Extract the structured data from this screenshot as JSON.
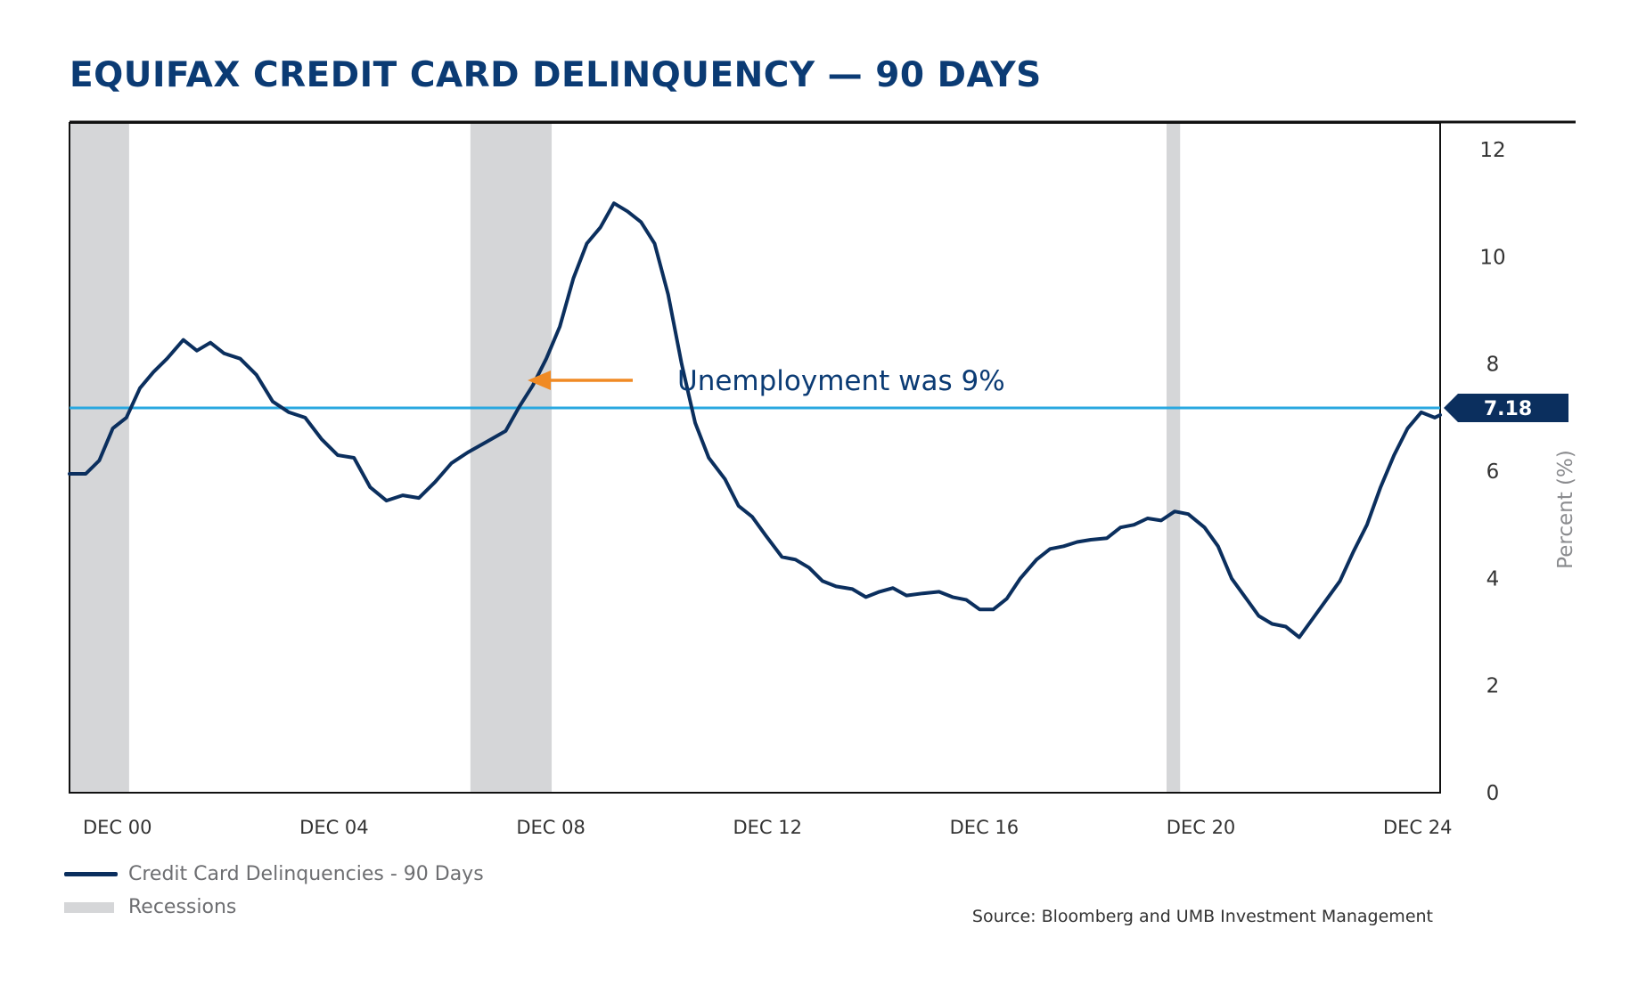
{
  "title": "EQUIFAX CREDIT CARD DELINQUENCY — 90 DAYS",
  "annotation": {
    "text": "Unemployment was 9%",
    "reference_value": 7.18,
    "reference_label": "7.18"
  },
  "legend": {
    "line_label": "Credit Card Delinquencies - 90 Days",
    "recession_label": "Recessions"
  },
  "source": "Source: Bloomberg and UMB Investment Management",
  "colors": {
    "title": "#0b3b74",
    "series": "#0b2f5e",
    "reference_line": "#29a8e0",
    "arrow": "#f08a24",
    "recession": "#d5d6d8",
    "axis_text": "#333333"
  },
  "chart_data": {
    "type": "line",
    "title": "EQUIFAX CREDIT CARD DELINQUENCY — 90 DAYS",
    "xlabel": "",
    "ylabel": "Percent (%)",
    "ylim": [
      0,
      12.5
    ],
    "yticks": [
      0,
      2,
      4,
      6,
      8,
      10,
      12
    ],
    "xlim": [
      2000.0,
      2025.3
    ],
    "xticks": [
      {
        "x": 2000.917,
        "label": "DEC 00"
      },
      {
        "x": 2004.917,
        "label": "DEC 04"
      },
      {
        "x": 2008.917,
        "label": "DEC 08"
      },
      {
        "x": 2012.917,
        "label": "DEC 12"
      },
      {
        "x": 2016.917,
        "label": "DEC 16"
      },
      {
        "x": 2020.917,
        "label": "DEC 20"
      },
      {
        "x": 2024.917,
        "label": "DEC 24"
      }
    ],
    "y_axis_side": "right",
    "grid": false,
    "legend_position": "bottom-left",
    "recessions": [
      {
        "start": 2000.0,
        "end": 2001.1
      },
      {
        "start": 2007.4,
        "end": 2008.9
      },
      {
        "start": 2020.25,
        "end": 2020.5
      }
    ],
    "series": [
      {
        "name": "Credit Card Delinquencies - 90 Days",
        "points": [
          [
            2000.0,
            5.95
          ],
          [
            2000.3,
            5.95
          ],
          [
            2000.55,
            6.2
          ],
          [
            2000.8,
            6.8
          ],
          [
            2001.05,
            7.0
          ],
          [
            2001.3,
            7.55
          ],
          [
            2001.55,
            7.85
          ],
          [
            2001.8,
            8.1
          ],
          [
            2002.1,
            8.45
          ],
          [
            2002.35,
            8.25
          ],
          [
            2002.6,
            8.4
          ],
          [
            2002.85,
            8.2
          ],
          [
            2003.15,
            8.1
          ],
          [
            2003.45,
            7.8
          ],
          [
            2003.75,
            7.3
          ],
          [
            2004.05,
            7.1
          ],
          [
            2004.35,
            7.0
          ],
          [
            2004.65,
            6.6
          ],
          [
            2004.95,
            6.3
          ],
          [
            2005.25,
            6.25
          ],
          [
            2005.55,
            5.7
          ],
          [
            2005.85,
            5.45
          ],
          [
            2006.15,
            5.55
          ],
          [
            2006.45,
            5.5
          ],
          [
            2006.75,
            5.8
          ],
          [
            2007.05,
            6.15
          ],
          [
            2007.35,
            6.35
          ],
          [
            2007.7,
            6.55
          ],
          [
            2008.05,
            6.75
          ],
          [
            2008.3,
            7.2
          ],
          [
            2008.55,
            7.6
          ],
          [
            2008.8,
            8.1
          ],
          [
            2009.05,
            8.7
          ],
          [
            2009.3,
            9.6
          ],
          [
            2009.55,
            10.25
          ],
          [
            2009.8,
            10.55
          ],
          [
            2010.05,
            11.0
          ],
          [
            2010.3,
            10.85
          ],
          [
            2010.55,
            10.65
          ],
          [
            2010.8,
            10.25
          ],
          [
            2011.05,
            9.3
          ],
          [
            2011.3,
            8.0
          ],
          [
            2011.55,
            6.9
          ],
          [
            2011.8,
            6.25
          ],
          [
            2012.1,
            5.85
          ],
          [
            2012.35,
            5.35
          ],
          [
            2012.6,
            5.15
          ],
          [
            2012.85,
            4.8
          ],
          [
            2013.15,
            4.4
          ],
          [
            2013.4,
            4.35
          ],
          [
            2013.65,
            4.2
          ],
          [
            2013.9,
            3.95
          ],
          [
            2014.15,
            3.85
          ],
          [
            2014.45,
            3.8
          ],
          [
            2014.7,
            3.65
          ],
          [
            2014.95,
            3.75
          ],
          [
            2015.2,
            3.82
          ],
          [
            2015.45,
            3.68
          ],
          [
            2015.75,
            3.72
          ],
          [
            2016.05,
            3.75
          ],
          [
            2016.3,
            3.65
          ],
          [
            2016.55,
            3.6
          ],
          [
            2016.8,
            3.42
          ],
          [
            2017.05,
            3.42
          ],
          [
            2017.3,
            3.62
          ],
          [
            2017.55,
            4.0
          ],
          [
            2017.85,
            4.35
          ],
          [
            2018.1,
            4.55
          ],
          [
            2018.35,
            4.6
          ],
          [
            2018.6,
            4.68
          ],
          [
            2018.85,
            4.72
          ],
          [
            2019.15,
            4.75
          ],
          [
            2019.4,
            4.95
          ],
          [
            2019.65,
            5.0
          ],
          [
            2019.9,
            5.12
          ],
          [
            2020.15,
            5.08
          ],
          [
            2020.4,
            5.25
          ],
          [
            2020.65,
            5.2
          ],
          [
            2020.95,
            4.95
          ],
          [
            2021.2,
            4.6
          ],
          [
            2021.45,
            4.0
          ],
          [
            2021.7,
            3.65
          ],
          [
            2021.95,
            3.3
          ],
          [
            2022.2,
            3.15
          ],
          [
            2022.45,
            3.1
          ],
          [
            2022.7,
            2.9
          ],
          [
            2022.95,
            3.25
          ],
          [
            2023.2,
            3.6
          ],
          [
            2023.45,
            3.95
          ],
          [
            2023.7,
            4.5
          ],
          [
            2023.95,
            5.0
          ],
          [
            2024.2,
            5.7
          ],
          [
            2024.45,
            6.3
          ],
          [
            2024.7,
            6.8
          ],
          [
            2024.95,
            7.1
          ],
          [
            2025.2,
            7.0
          ],
          [
            2025.3,
            7.05
          ]
        ]
      }
    ]
  }
}
